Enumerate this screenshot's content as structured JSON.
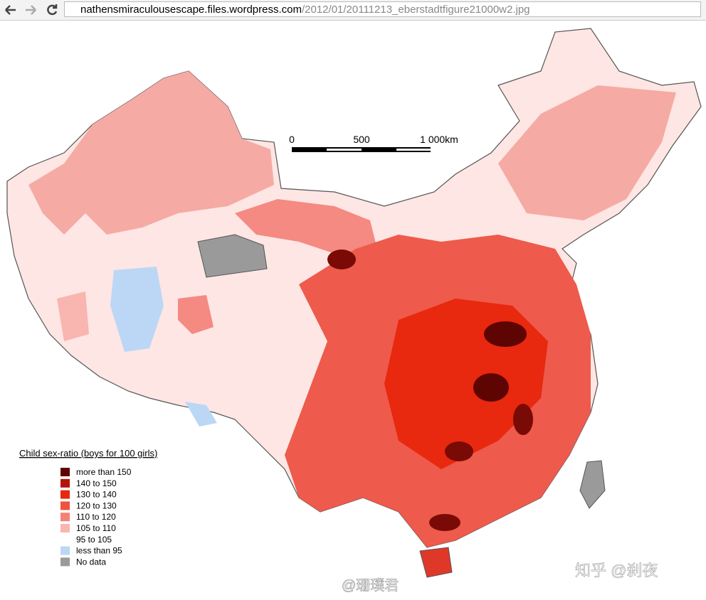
{
  "browser": {
    "url_host": "nathensmiraculousescape.files.wordpress.com",
    "url_path": "/2012/01/20111213_eberstadtfigure21000w2.jpg"
  },
  "scale_bar": {
    "labels": [
      "0",
      "500",
      "1 000km"
    ]
  },
  "legend": {
    "title": "Child sex-ratio (boys for 100 girls)",
    "items": [
      {
        "label": "more than 150",
        "color": "#5e0503"
      },
      {
        "label": "140 to 150",
        "color": "#b3140a"
      },
      {
        "label": "130 to 140",
        "color": "#e8280f"
      },
      {
        "label": "120 to 130",
        "color": "#ef5241"
      },
      {
        "label": "110 to 120",
        "color": "#f48078"
      },
      {
        "label": "105 to 110",
        "color": "#f9b5b0"
      },
      {
        "label": "95 to 105",
        "color": "#ffffff"
      },
      {
        "label": "less than 95",
        "color": "#bcd7f6"
      },
      {
        "label": "No data",
        "color": "#9a9a9a"
      }
    ]
  },
  "watermarks": [
    "知乎 @刹夜",
    "@珊璞君"
  ]
}
